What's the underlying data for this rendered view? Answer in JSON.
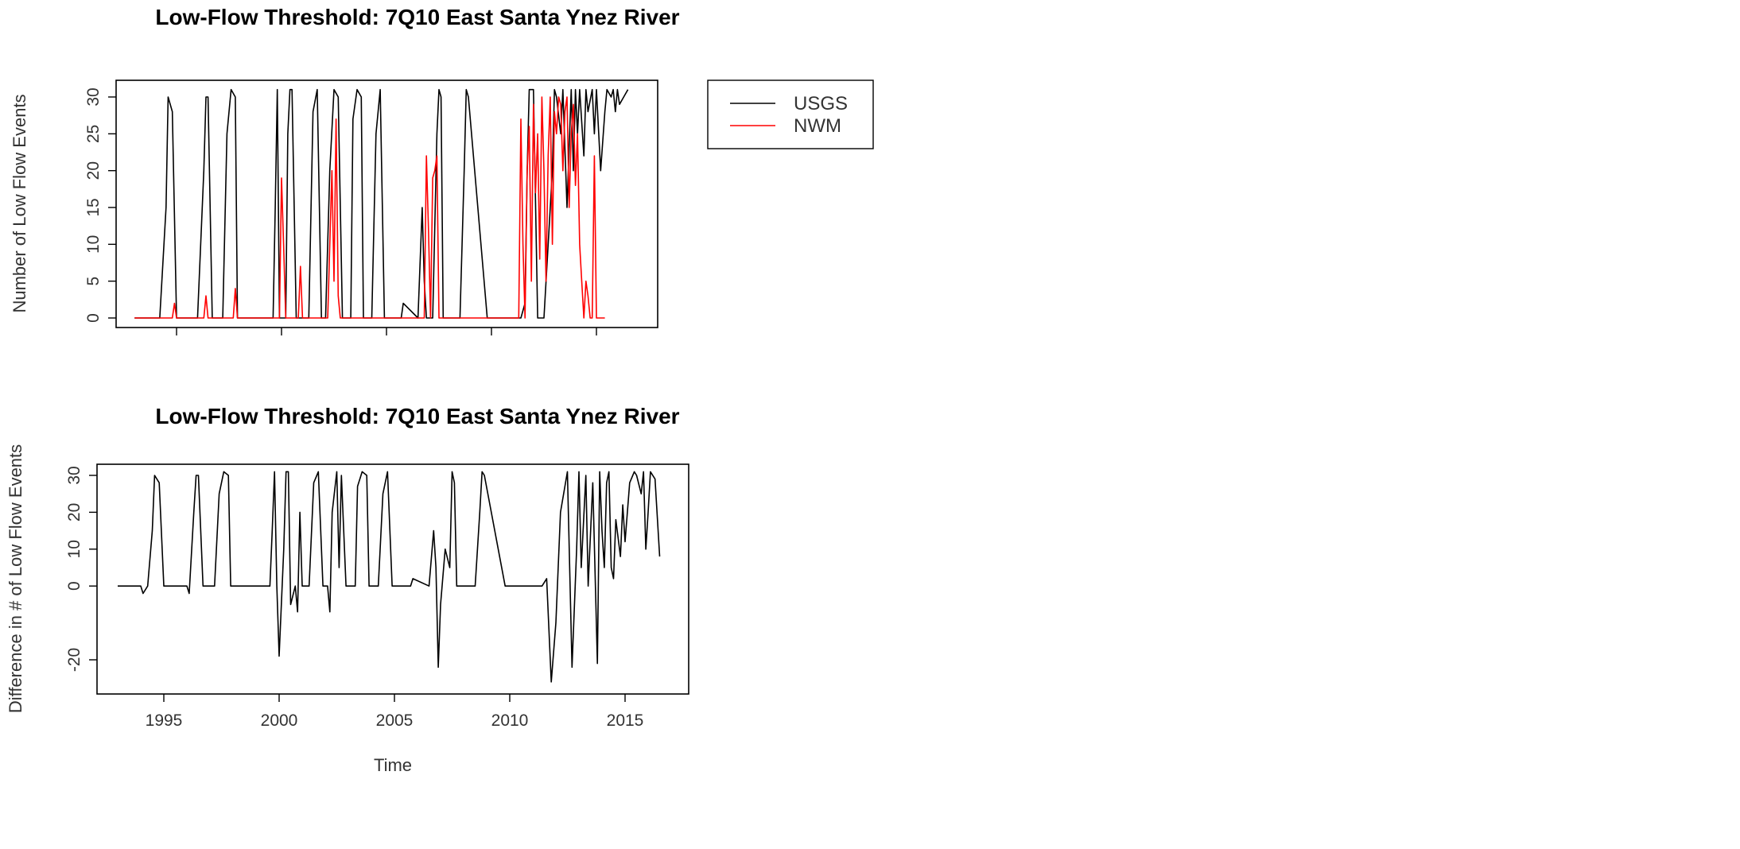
{
  "chart_data": [
    {
      "type": "line",
      "title": "Low-Flow Threshold: 7Q10 East Santa Ynez River",
      "xlabel": "",
      "ylabel": "Number of Low Flow Events",
      "xlim": [
        1993,
        2016.8
      ],
      "ylim": [
        0,
        31
      ],
      "yticks": [
        0,
        5,
        10,
        15,
        20,
        25,
        30
      ],
      "ytick_labels": [
        "0",
        "5",
        "10",
        "15",
        "20",
        "25",
        "30"
      ],
      "xticks": [
        1995,
        2000,
        2005,
        2010,
        2015
      ],
      "xtick_labels": [],
      "grid": false,
      "legend": {
        "placement": "outside-right"
      },
      "series": [
        {
          "name": "USGS",
          "color": "#000000",
          "x": [
            1993.0,
            1994.2,
            1994.5,
            1994.6,
            1994.8,
            1995.0,
            1995.1,
            1996.0,
            1996.3,
            1996.4,
            1996.5,
            1996.7,
            1997.2,
            1997.4,
            1997.6,
            1997.8,
            1997.9,
            1999.6,
            1999.7,
            1999.8,
            1999.9,
            2000.2,
            2000.3,
            2000.4,
            2000.5,
            2000.7,
            2000.9,
            2001.3,
            2001.5,
            2001.7,
            2001.9,
            2002.1,
            2002.3,
            2002.5,
            2002.7,
            2002.9,
            2003.0,
            2003.3,
            2003.4,
            2003.6,
            2003.8,
            2003.9,
            2004.3,
            2004.5,
            2004.7,
            2004.9,
            2005.7,
            2005.8,
            2006.5,
            2006.7,
            2006.8,
            2006.9,
            2007.2,
            2007.4,
            2007.5,
            2007.6,
            2007.7,
            2008.5,
            2008.7,
            2008.8,
            2008.9,
            2009.8,
            2010.0,
            2010.2,
            2011.2,
            2011.4,
            2011.6,
            2011.7,
            2011.8,
            2012.0,
            2012.2,
            2012.5,
            2012.9,
            2013.0,
            2013.1,
            2013.3,
            2013.4,
            2013.6,
            2013.8,
            2013.9,
            2014.0,
            2014.1,
            2014.2,
            2014.4,
            2014.5,
            2014.6,
            2014.8,
            2014.9,
            2015.0,
            2015.2,
            2015.4,
            2015.5,
            2015.7,
            2015.8,
            2015.9,
            2016.0,
            2016.1,
            2016.3,
            2016.5
          ],
          "values": [
            0,
            0,
            15,
            30,
            28,
            0,
            0,
            0,
            20,
            30,
            30,
            0,
            0,
            25,
            31,
            30,
            0,
            0,
            15,
            31,
            0,
            0,
            25,
            31,
            31,
            0,
            0,
            0,
            28,
            31,
            0,
            0,
            20,
            31,
            30,
            0,
            0,
            0,
            27,
            31,
            30,
            0,
            0,
            25,
            31,
            0,
            0,
            2,
            0,
            15,
            5,
            0,
            0,
            25,
            31,
            30,
            0,
            0,
            20,
            31,
            30,
            0,
            0,
            0,
            0,
            0,
            2,
            20,
            31,
            31,
            0,
            0,
            20,
            31,
            30,
            25,
            31,
            15,
            31,
            20,
            31,
            25,
            31,
            22,
            31,
            28,
            31,
            25,
            31,
            20,
            28,
            31,
            30,
            31,
            28,
            31,
            29,
            30,
            31
          ]
        },
        {
          "name": "NWM",
          "color": "#ff0000",
          "x": [
            1993.0,
            1994.8,
            1994.9,
            1995.0,
            1996.3,
            1996.4,
            1996.5,
            1997.7,
            1997.8,
            1997.9,
            1999.9,
            2000.0,
            2000.1,
            2000.2,
            2000.8,
            2000.9,
            2001.0,
            2002.2,
            2002.3,
            2002.4,
            2002.5,
            2002.6,
            2002.7,
            2002.8,
            2006.8,
            2006.9,
            2007.0,
            2007.1,
            2007.2,
            2007.3,
            2007.4,
            2007.5,
            2011.3,
            2011.4,
            2011.5,
            2011.6,
            2011.7,
            2011.8,
            2011.9,
            2012.0,
            2012.1,
            2012.2,
            2012.3,
            2012.4,
            2012.5,
            2012.6,
            2012.7,
            2012.8,
            2012.9,
            2013.0,
            2013.1,
            2013.2,
            2013.3,
            2013.4,
            2013.5,
            2013.6,
            2013.7,
            2013.8,
            2013.9,
            2014.0,
            2014.1,
            2014.2,
            2014.3,
            2014.4,
            2014.5,
            2014.6,
            2014.7,
            2014.8,
            2014.9,
            2015.0,
            2015.1,
            2015.2,
            2015.3,
            2015.4
          ],
          "values": [
            0,
            0,
            2,
            0,
            0,
            3,
            0,
            0,
            4,
            0,
            0,
            19,
            10,
            0,
            0,
            7,
            0,
            0,
            10,
            20,
            5,
            27,
            3,
            0,
            0,
            22,
            12,
            0,
            19,
            20,
            22,
            0,
            0,
            27,
            10,
            0,
            20,
            26,
            5,
            29,
            17,
            25,
            8,
            30,
            20,
            5,
            22,
            30,
            10,
            28,
            25,
            30,
            29,
            20,
            28,
            30,
            15,
            25,
            29,
            18,
            25,
            10,
            5,
            0,
            5,
            3,
            0,
            0,
            22,
            0,
            0,
            0,
            0,
            0
          ]
        }
      ]
    },
    {
      "type": "line",
      "title": "Low-Flow Threshold: 7Q10 East Santa Ynez River",
      "xlabel": "Time",
      "ylabel": "Difference in # of Low Flow Events",
      "xlim": [
        1993,
        2016.8
      ],
      "ylim": [
        -26,
        31
      ],
      "yticks": [
        -20,
        0,
        10,
        20,
        30
      ],
      "ytick_labels": [
        "-20",
        "0",
        "10",
        "20",
        "30"
      ],
      "xticks": [
        1995,
        2000,
        2005,
        2010,
        2015
      ],
      "xtick_labels": [
        "1995",
        "2000",
        "2005",
        "2010",
        "2015"
      ],
      "grid": false,
      "series": [
        {
          "color": "#000000",
          "x": [
            1993.0,
            1994.0,
            1994.1,
            1994.3,
            1994.5,
            1994.6,
            1994.8,
            1995.0,
            1995.1,
            1996.0,
            1996.1,
            1996.3,
            1996.4,
            1996.5,
            1996.7,
            1997.2,
            1997.4,
            1997.6,
            1997.8,
            1997.9,
            1999.6,
            1999.7,
            1999.8,
            1999.9,
            2000.0,
            2000.2,
            2000.3,
            2000.4,
            2000.5,
            2000.7,
            2000.8,
            2000.9,
            2001.0,
            2001.3,
            2001.5,
            2001.7,
            2001.9,
            2002.1,
            2002.2,
            2002.3,
            2002.5,
            2002.6,
            2002.7,
            2002.9,
            2003.0,
            2003.3,
            2003.4,
            2003.6,
            2003.8,
            2003.9,
            2004.3,
            2004.5,
            2004.7,
            2004.9,
            2005.7,
            2005.8,
            2006.5,
            2006.7,
            2006.8,
            2006.9,
            2007.0,
            2007.2,
            2007.4,
            2007.5,
            2007.6,
            2007.7,
            2008.5,
            2008.7,
            2008.8,
            2008.9,
            2009.8,
            2010.0,
            2010.2,
            2011.2,
            2011.4,
            2011.6,
            2011.8,
            2012.0,
            2012.2,
            2012.5,
            2012.7,
            2012.9,
            2013.0,
            2013.1,
            2013.3,
            2013.4,
            2013.6,
            2013.8,
            2013.9,
            2014.0,
            2014.1,
            2014.2,
            2014.3,
            2014.4,
            2014.5,
            2014.6,
            2014.8,
            2014.9,
            2015.0,
            2015.2,
            2015.4,
            2015.5,
            2015.7,
            2015.8,
            2015.9,
            2016.0,
            2016.1,
            2016.3,
            2016.5
          ],
          "values": [
            0,
            0,
            -2,
            0,
            15,
            30,
            28,
            0,
            0,
            0,
            -2,
            20,
            30,
            30,
            0,
            0,
            25,
            31,
            30,
            0,
            0,
            15,
            31,
            0,
            -19,
            10,
            31,
            31,
            -5,
            0,
            -7,
            20,
            0,
            0,
            28,
            31,
            0,
            0,
            -7,
            20,
            31,
            5,
            30,
            0,
            0,
            0,
            27,
            31,
            30,
            0,
            0,
            25,
            31,
            0,
            0,
            2,
            0,
            15,
            5,
            -22,
            -5,
            10,
            5,
            31,
            28,
            0,
            0,
            20,
            31,
            30,
            0,
            0,
            0,
            0,
            0,
            2,
            -26,
            -10,
            20,
            31,
            -22,
            10,
            31,
            5,
            30,
            0,
            28,
            -21,
            31,
            15,
            5,
            28,
            31,
            5,
            2,
            18,
            8,
            22,
            12,
            28,
            31,
            30,
            25,
            31,
            10,
            20,
            31,
            29,
            8
          ]
        }
      ]
    }
  ]
}
